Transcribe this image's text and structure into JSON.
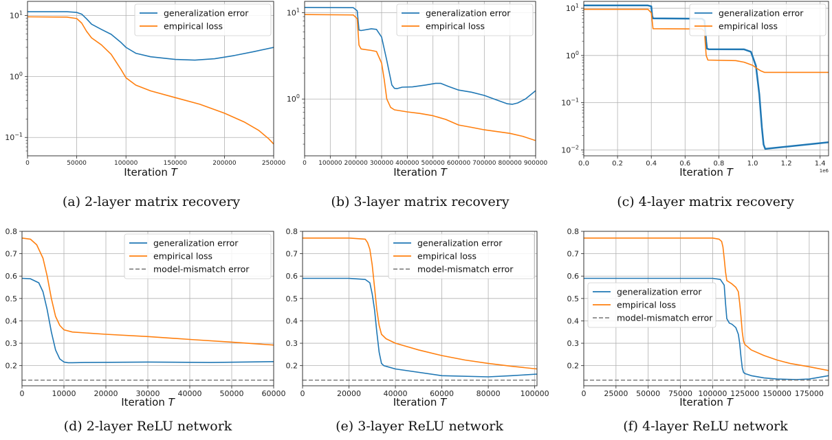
{
  "chart_data": [
    {
      "type": "line",
      "yscale": "log",
      "xlim": [
        0,
        250000
      ],
      "ylim": [
        0.05,
        17
      ],
      "xticks": [
        "0",
        "50000",
        "100000",
        "150000",
        "200000",
        "250000"
      ],
      "xtick_values": [
        0,
        50000,
        100000,
        150000,
        200000,
        250000
      ],
      "yticks": [
        {
          "v": 10,
          "base": "10",
          "exp": "1"
        },
        {
          "v": 1,
          "base": "10",
          "exp": "0"
        },
        {
          "v": 0.1,
          "base": "10",
          "exp": "−1"
        }
      ],
      "xlabel_prefix": "Iteration ",
      "xlabel_var": "T",
      "caption": "(a) 2-layer matrix recovery",
      "legend": "top-right",
      "grid": true,
      "series": [
        {
          "name": "generalization error",
          "color": "#1f77b4",
          "x": [
            0,
            40000,
            50000,
            55000,
            60000,
            65000,
            75000,
            85000,
            95000,
            100000,
            110000,
            125000,
            150000,
            170000,
            190000,
            210000,
            230000,
            250000
          ],
          "y": [
            11.5,
            11.5,
            11.2,
            10.5,
            8.8,
            7.2,
            5.9,
            4.9,
            3.6,
            3.0,
            2.4,
            2.1,
            1.9,
            1.85,
            1.95,
            2.2,
            2.55,
            3.0
          ]
        },
        {
          "name": "empirical loss",
          "color": "#ff7f0e",
          "x": [
            0,
            40000,
            50000,
            55000,
            60000,
            65000,
            75000,
            85000,
            95000,
            100000,
            110000,
            125000,
            150000,
            175000,
            200000,
            220000,
            235000,
            245000,
            250000
          ],
          "y": [
            9.5,
            9.4,
            8.9,
            7.5,
            5.5,
            4.3,
            3.3,
            2.3,
            1.3,
            0.95,
            0.72,
            0.58,
            0.45,
            0.35,
            0.25,
            0.18,
            0.13,
            0.095,
            0.078
          ]
        }
      ]
    },
    {
      "type": "line",
      "yscale": "log",
      "xlim": [
        0,
        900000
      ],
      "ylim": [
        0.22,
        13.5
      ],
      "xticks": [
        "0",
        "100000",
        "200000",
        "300000",
        "400000",
        "500000",
        "600000",
        "700000",
        "800000",
        "900000"
      ],
      "xtick_values": [
        0,
        100000,
        200000,
        300000,
        400000,
        500000,
        600000,
        700000,
        800000,
        900000
      ],
      "yticks": [
        {
          "v": 10,
          "base": "10",
          "exp": "1"
        },
        {
          "v": 1,
          "base": "10",
          "exp": "0"
        }
      ],
      "xlabel_prefix": "Iteration ",
      "xlabel_var": "T",
      "caption": "(b) 3-layer matrix recovery",
      "legend": "top-right",
      "grid": true,
      "series": [
        {
          "name": "generalization error",
          "color": "#1f77b4",
          "x": [
            0,
            190000,
            205000,
            212000,
            220000,
            260000,
            280000,
            300000,
            320000,
            340000,
            350000,
            360000,
            380000,
            420000,
            470000,
            510000,
            530000,
            560000,
            600000,
            650000,
            700000,
            750000,
            790000,
            810000,
            830000,
            860000,
            900000
          ],
          "y": [
            11.5,
            11.4,
            10.5,
            6.3,
            6.2,
            6.5,
            6.4,
            5.2,
            2.8,
            1.45,
            1.33,
            1.32,
            1.37,
            1.38,
            1.45,
            1.52,
            1.52,
            1.4,
            1.27,
            1.2,
            1.1,
            0.97,
            0.88,
            0.87,
            0.9,
            1.0,
            1.25
          ]
        },
        {
          "name": "empirical loss",
          "color": "#ff7f0e",
          "x": [
            0,
            190000,
            205000,
            212000,
            220000,
            260000,
            280000,
            300000,
            310000,
            320000,
            335000,
            350000,
            400000,
            450000,
            500000,
            550000,
            600000,
            650000,
            700000,
            750000,
            800000,
            850000,
            900000
          ],
          "y": [
            9.5,
            9.4,
            8.5,
            4.2,
            3.8,
            3.65,
            3.55,
            2.6,
            1.7,
            1.0,
            0.8,
            0.75,
            0.71,
            0.68,
            0.64,
            0.58,
            0.5,
            0.47,
            0.44,
            0.42,
            0.4,
            0.37,
            0.33
          ]
        }
      ]
    },
    {
      "type": "line",
      "yscale": "log",
      "xlim": [
        0,
        1.45
      ],
      "ylim": [
        0.0075,
        14
      ],
      "xticks": [
        "0.0",
        "0.2",
        "0.4",
        "0.6",
        "0.8",
        "1.0",
        "1.2",
        "1.4"
      ],
      "xtick_values": [
        0,
        0.2,
        0.4,
        0.6,
        0.8,
        1.0,
        1.2,
        1.4
      ],
      "xscale_note": "1e6",
      "yticks": [
        {
          "v": 10,
          "base": "10",
          "exp": "1"
        },
        {
          "v": 1,
          "base": "10",
          "exp": "0"
        },
        {
          "v": 0.1,
          "base": "10",
          "exp": "−1"
        },
        {
          "v": 0.01,
          "base": "10",
          "exp": "−2"
        }
      ],
      "xlabel_prefix": "Iteration ",
      "xlabel_var": "T",
      "caption": "(c) 4-layer matrix recovery",
      "legend": "top-right",
      "grid": true,
      "series": [
        {
          "name": "generalization error",
          "color": "#1f77b4",
          "width": 2.5,
          "x": [
            0,
            0.38,
            0.4,
            0.405,
            0.41,
            0.7,
            0.715,
            0.725,
            0.73,
            0.74,
            0.95,
            0.99,
            1.02,
            1.04,
            1.055,
            1.065,
            1.075,
            1.45
          ],
          "y": [
            11.5,
            11.5,
            11.0,
            7.0,
            6.1,
            6.0,
            5.5,
            2.0,
            1.4,
            1.36,
            1.35,
            1.2,
            0.6,
            0.15,
            0.03,
            0.013,
            0.0105,
            0.0145
          ]
        },
        {
          "name": "empirical loss",
          "color": "#ff7f0e",
          "x": [
            0,
            0.38,
            0.4,
            0.41,
            0.7,
            0.715,
            0.725,
            0.735,
            0.9,
            0.95,
            1.0,
            1.03,
            1.05,
            1.07,
            1.45
          ],
          "y": [
            9.5,
            9.5,
            8.0,
            3.7,
            3.65,
            3.3,
            1.0,
            0.8,
            0.78,
            0.72,
            0.62,
            0.52,
            0.47,
            0.44,
            0.44
          ]
        }
      ]
    },
    {
      "type": "line",
      "yscale": "linear",
      "xlim": [
        0,
        60000
      ],
      "ylim": [
        0.11,
        0.8
      ],
      "xticks": [
        "0",
        "10000",
        "20000",
        "30000",
        "40000",
        "50000",
        "60000"
      ],
      "xtick_values": [
        0,
        10000,
        20000,
        30000,
        40000,
        50000,
        60000
      ],
      "yticks": [
        {
          "v": 0.2,
          "label": "0.2"
        },
        {
          "v": 0.3,
          "label": "0.3"
        },
        {
          "v": 0.4,
          "label": "0.4"
        },
        {
          "v": 0.5,
          "label": "0.5"
        },
        {
          "v": 0.6,
          "label": "0.6"
        },
        {
          "v": 0.7,
          "label": "0.7"
        },
        {
          "v": 0.8,
          "label": "0.8"
        }
      ],
      "xlabel_prefix": "Iteration ",
      "xlabel_var": "T",
      "caption": "(d) 2-layer ReLU network",
      "legend": "top-right",
      "grid": true,
      "series": [
        {
          "name": "generalization error",
          "color": "#1f77b4",
          "x": [
            0,
            2000,
            4000,
            5000,
            6000,
            7000,
            8000,
            9000,
            10000,
            11000,
            12000,
            15000,
            30000,
            45000,
            60000
          ],
          "y": [
            0.59,
            0.588,
            0.57,
            0.53,
            0.45,
            0.35,
            0.27,
            0.23,
            0.216,
            0.213,
            0.213,
            0.214,
            0.216,
            0.214,
            0.218
          ]
        },
        {
          "name": "empirical loss",
          "color": "#ff7f0e",
          "x": [
            0,
            2000,
            3500,
            5000,
            6000,
            7000,
            8000,
            9000,
            10000,
            12000,
            20000,
            30000,
            40000,
            50000,
            60000
          ],
          "y": [
            0.77,
            0.765,
            0.74,
            0.68,
            0.6,
            0.5,
            0.42,
            0.38,
            0.36,
            0.35,
            0.34,
            0.33,
            0.317,
            0.305,
            0.292
          ]
        },
        {
          "name": "model-mismatch error",
          "color": "#888888",
          "dashed": true,
          "x": [
            0,
            60000
          ],
          "y": [
            0.135,
            0.135
          ]
        }
      ]
    },
    {
      "type": "line",
      "yscale": "linear",
      "xlim": [
        0,
        101000
      ],
      "ylim": [
        0.11,
        0.8
      ],
      "xticks": [
        "0",
        "20000",
        "40000",
        "60000",
        "80000",
        "100000"
      ],
      "xtick_values": [
        0,
        20000,
        40000,
        60000,
        80000,
        100000
      ],
      "yticks": [
        {
          "v": 0.2,
          "label": "0.2"
        },
        {
          "v": 0.3,
          "label": "0.3"
        },
        {
          "v": 0.4,
          "label": "0.4"
        },
        {
          "v": 0.5,
          "label": "0.5"
        },
        {
          "v": 0.6,
          "label": "0.6"
        },
        {
          "v": 0.7,
          "label": "0.7"
        },
        {
          "v": 0.8,
          "label": "0.8"
        }
      ],
      "xlabel_prefix": "Iteration ",
      "xlabel_var": "T",
      "caption": "(e) 3-layer ReLU network",
      "legend": "top-right",
      "grid": true,
      "series": [
        {
          "name": "generalization error",
          "color": "#1f77b4",
          "x": [
            0,
            20000,
            27000,
            29000,
            30000,
            31000,
            32000,
            33000,
            34000,
            35000,
            40000,
            60000,
            80000,
            90000,
            101000
          ],
          "y": [
            0.59,
            0.59,
            0.585,
            0.57,
            0.52,
            0.45,
            0.35,
            0.26,
            0.21,
            0.2,
            0.185,
            0.155,
            0.15,
            0.155,
            0.162
          ]
        },
        {
          "name": "empirical loss",
          "color": "#ff7f0e",
          "x": [
            0,
            20000,
            27000,
            28000,
            29000,
            30000,
            31000,
            32000,
            33000,
            34000,
            36000,
            40000,
            50000,
            60000,
            70000,
            80000,
            90000,
            101000
          ],
          "y": [
            0.77,
            0.77,
            0.765,
            0.75,
            0.72,
            0.65,
            0.55,
            0.45,
            0.38,
            0.34,
            0.32,
            0.3,
            0.27,
            0.245,
            0.225,
            0.21,
            0.197,
            0.185
          ]
        },
        {
          "name": "model-mismatch error",
          "color": "#888888",
          "dashed": true,
          "x": [
            0,
            101000
          ],
          "y": [
            0.135,
            0.135
          ]
        }
      ]
    },
    {
      "type": "line",
      "yscale": "linear",
      "xlim": [
        0,
        190000
      ],
      "ylim": [
        0.11,
        0.8
      ],
      "xticks": [
        "0",
        "25000",
        "50000",
        "75000",
        "100000",
        "125000",
        "150000",
        "175000"
      ],
      "xtick_values": [
        0,
        25000,
        50000,
        75000,
        100000,
        125000,
        150000,
        175000
      ],
      "yticks": [
        {
          "v": 0.2,
          "label": "0.2"
        },
        {
          "v": 0.3,
          "label": "0.3"
        },
        {
          "v": 0.4,
          "label": "0.4"
        },
        {
          "v": 0.5,
          "label": "0.5"
        },
        {
          "v": 0.6,
          "label": "0.6"
        },
        {
          "v": 0.7,
          "label": "0.7"
        },
        {
          "v": 0.8,
          "label": "0.8"
        }
      ],
      "xlabel_prefix": "Iteration ",
      "xlabel_var": "T",
      "caption": "(f) 4-layer ReLU network",
      "legend": "center-left",
      "grid": true,
      "series": [
        {
          "name": "generalization error",
          "color": "#1f77b4",
          "x": [
            0,
            100000,
            106000,
            109000,
            110000,
            111000,
            113000,
            115000,
            118000,
            120000,
            121000,
            122000,
            123000,
            124000,
            125000,
            130000,
            140000,
            150000,
            165000,
            175000,
            190000
          ],
          "y": [
            0.59,
            0.59,
            0.585,
            0.56,
            0.48,
            0.41,
            0.39,
            0.385,
            0.37,
            0.34,
            0.3,
            0.24,
            0.19,
            0.17,
            0.165,
            0.155,
            0.145,
            0.14,
            0.138,
            0.14,
            0.155
          ]
        },
        {
          "name": "empirical loss",
          "color": "#ff7f0e",
          "x": [
            0,
            100000,
            105000,
            107000,
            108000,
            109000,
            110000,
            111000,
            115000,
            118000,
            120000,
            121000,
            122000,
            123000,
            124000,
            125000,
            130000,
            140000,
            150000,
            160000,
            175000,
            190000
          ],
          "y": [
            0.77,
            0.77,
            0.765,
            0.755,
            0.73,
            0.68,
            0.62,
            0.58,
            0.565,
            0.55,
            0.53,
            0.48,
            0.42,
            0.35,
            0.31,
            0.295,
            0.27,
            0.245,
            0.225,
            0.21,
            0.195,
            0.178
          ]
        },
        {
          "name": "model-mismatch error",
          "color": "#888888",
          "dashed": true,
          "x": [
            0,
            190000
          ],
          "y": [
            0.135,
            0.135
          ]
        }
      ]
    }
  ]
}
